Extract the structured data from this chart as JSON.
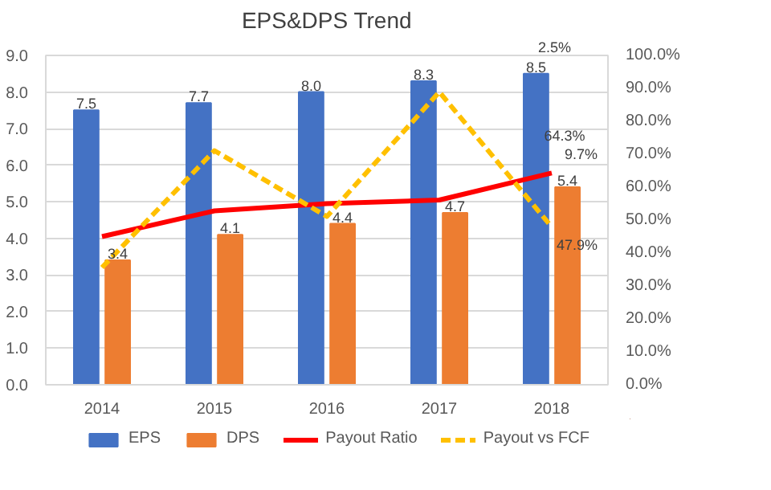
{
  "chart_data": {
    "type": "bar",
    "title": "EPS&DPS Trend",
    "categories": [
      "2014",
      "2015",
      "2016",
      "2017",
      "2018"
    ],
    "series": [
      {
        "name": "EPS",
        "color": "#4472c4",
        "values": [
          7.5,
          7.7,
          8.0,
          8.3,
          8.5
        ],
        "value_labels": [
          "7.5",
          "7.7",
          "8.0",
          "8.3",
          "8.5"
        ]
      },
      {
        "name": "DPS",
        "color": "#ed7d31",
        "values": [
          3.4,
          4.1,
          4.4,
          4.7,
          5.4
        ],
        "value_labels": [
          "3.4",
          "4.1",
          "4.4",
          "4.7",
          "5.4"
        ]
      },
      {
        "name": "Payout Ratio",
        "type": "line",
        "axis": "y2",
        "color": "#ff0000",
        "line_style": "solid",
        "values": [
          45.0,
          52.8,
          55.0,
          56.1,
          64.3
        ],
        "value_labels": [
          null,
          null,
          null,
          null,
          "64.3%"
        ]
      },
      {
        "name": "Payout vs FCF",
        "type": "line",
        "axis": "y2",
        "color": "#ffc000",
        "line_style": "dashed",
        "values": [
          35.6,
          71.1,
          51.1,
          88.9,
          47.9
        ],
        "value_labels": [
          null,
          null,
          null,
          null,
          "47.9%"
        ]
      }
    ],
    "ylim": [
      0,
      9
    ],
    "yticks": [
      "0.0",
      "1.0",
      "2.0",
      "3.0",
      "4.0",
      "5.0",
      "6.0",
      "7.0",
      "8.0",
      "9.0"
    ],
    "y2lim": [
      0,
      100
    ],
    "y2ticks": [
      "0.0%",
      "10.0%",
      "20.0%",
      "30.0%",
      "40.0%",
      "50.0%",
      "60.0%",
      "70.0%",
      "80.0%",
      "90.0%",
      "100.0%"
    ],
    "annotations": [
      "2.5%",
      {
        "text": "9.7%",
        "x": "2018",
        "y": 6.3
      }
    ],
    "grid": "y",
    "legend": "bottom"
  }
}
